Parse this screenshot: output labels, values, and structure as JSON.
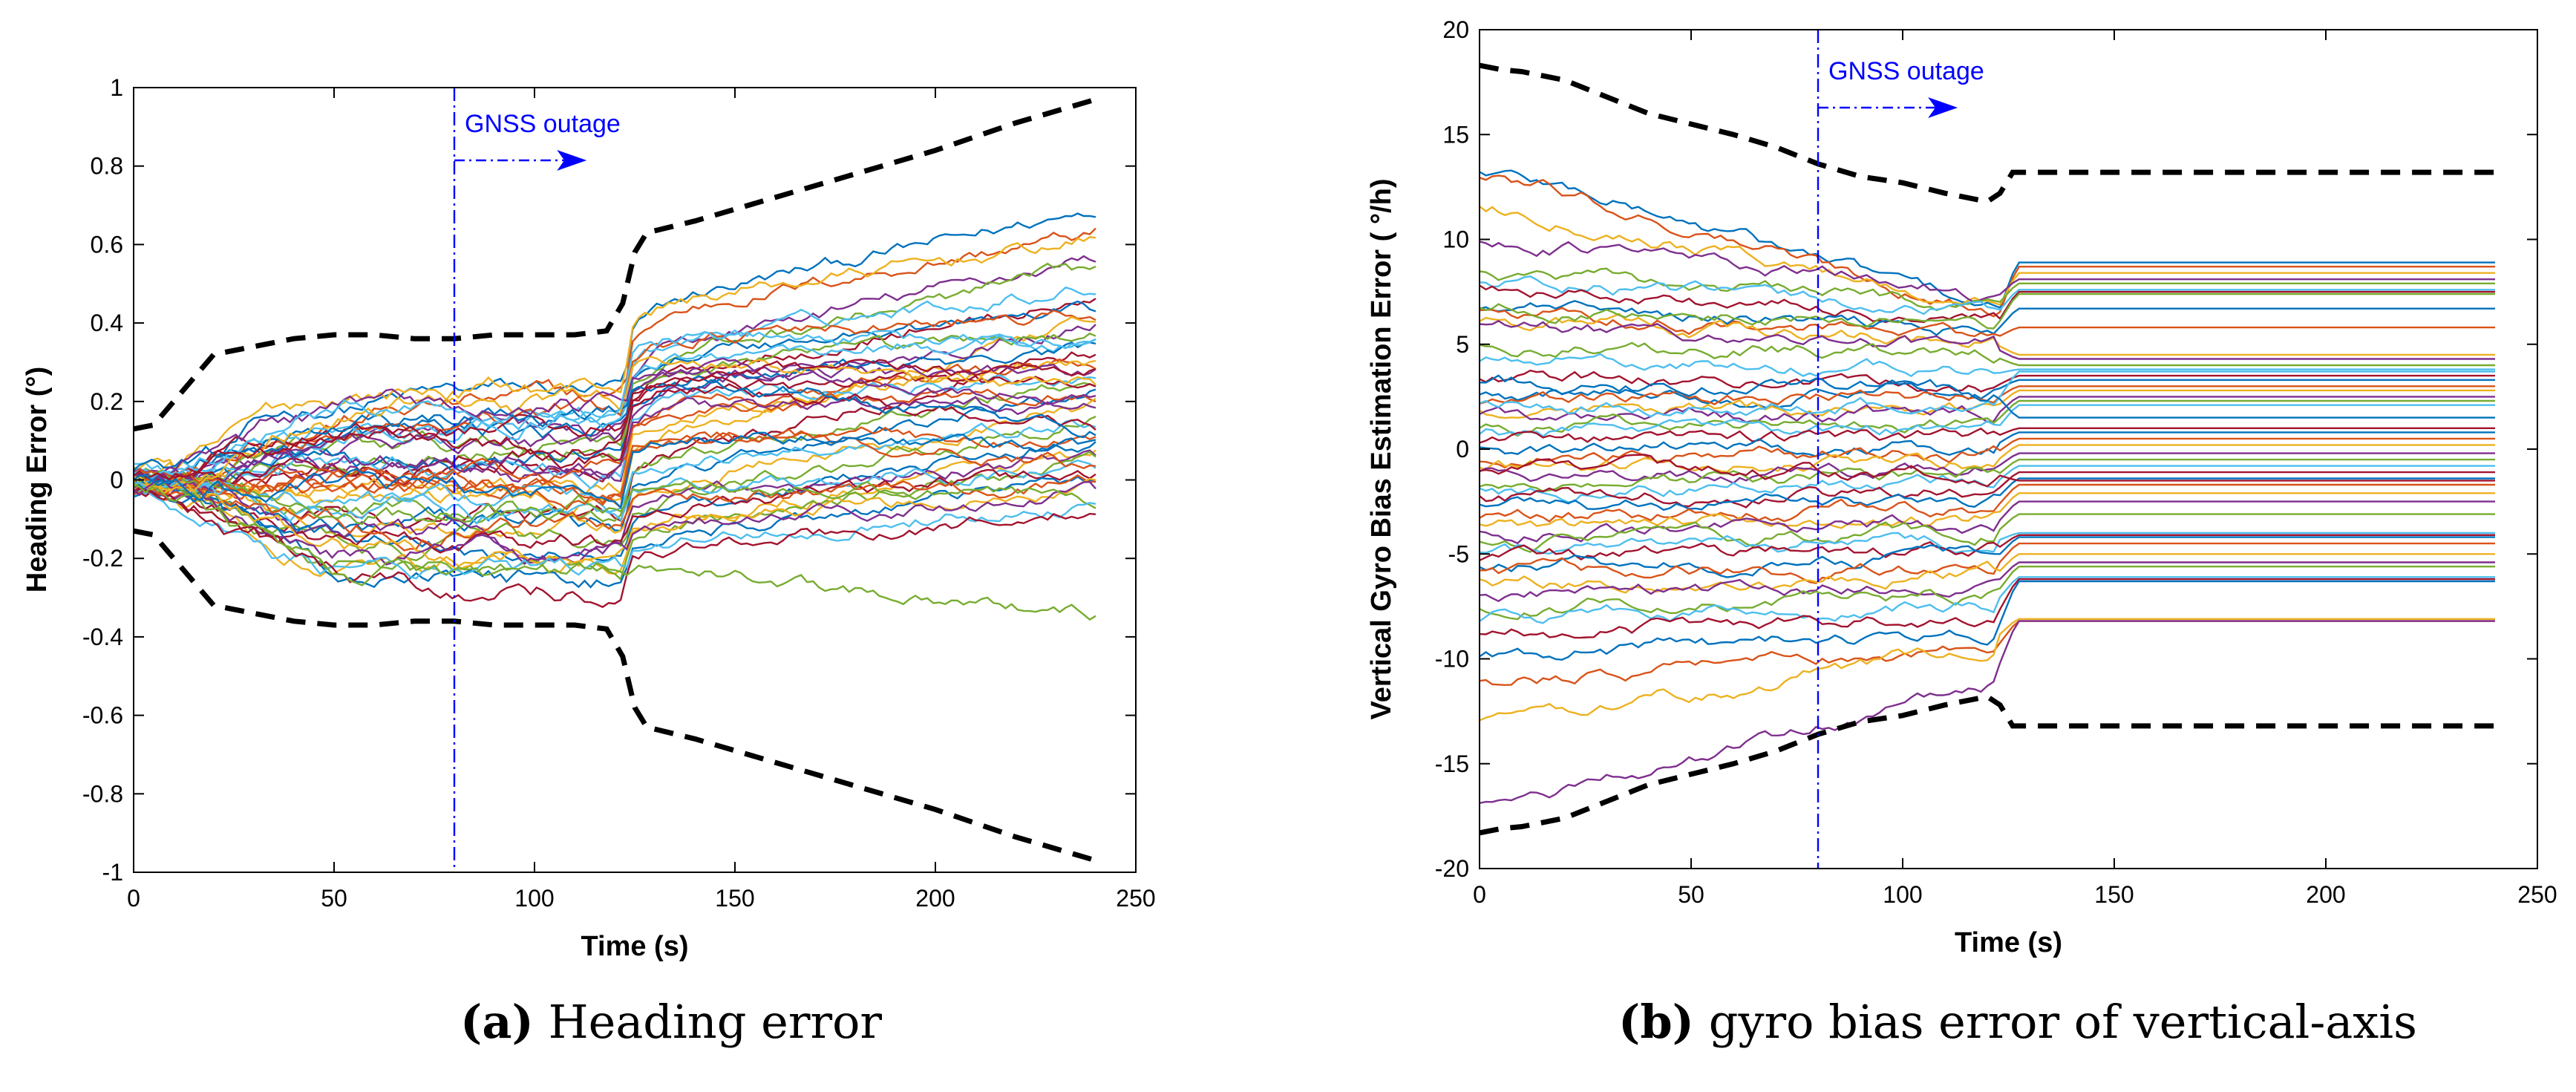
{
  "captions": {
    "a": {
      "letter": "(a)",
      "text": "Heading error"
    },
    "b": {
      "letter": "(b)",
      "text": "gyro bias error of vertical-axis"
    }
  },
  "chart_data": [
    {
      "id": "a",
      "type": "line",
      "title": "",
      "xlabel": "Time (s)",
      "ylabel": "Heading Error (°)",
      "xlim": [
        0,
        250
      ],
      "ylim": [
        -1,
        1
      ],
      "xticks": [
        0,
        50,
        100,
        150,
        200,
        250
      ],
      "yticks": [
        -1,
        -0.8,
        -0.6,
        -0.4,
        -0.2,
        0,
        0.2,
        0.4,
        0.6,
        0.8,
        1
      ],
      "ytick_labels": [
        "-1",
        "-0.8",
        "-0.6",
        "-0.4",
        "-0.2",
        "0",
        "0.2",
        "0.4",
        "0.6",
        "0.8",
        "1"
      ],
      "grid": false,
      "annotation": {
        "text": "GNSS outage",
        "x": 80,
        "arrow_from_x": 80,
        "arrow_to_x": 113
      },
      "outage_line_x": 80,
      "bound_upper": {
        "x": [
          0,
          5,
          10,
          20,
          30,
          40,
          50,
          60,
          70,
          80,
          90,
          100,
          110,
          118,
          122,
          125,
          128,
          140,
          160,
          180,
          200,
          220,
          240
        ],
        "y": [
          0.13,
          0.14,
          0.2,
          0.32,
          0.34,
          0.36,
          0.37,
          0.37,
          0.36,
          0.36,
          0.37,
          0.37,
          0.37,
          0.38,
          0.45,
          0.58,
          0.63,
          0.66,
          0.72,
          0.78,
          0.84,
          0.91,
          0.97
        ]
      },
      "bound_lower": {
        "x": [
          0,
          5,
          10,
          20,
          30,
          40,
          50,
          60,
          70,
          80,
          90,
          100,
          110,
          118,
          122,
          125,
          128,
          140,
          160,
          180,
          200,
          220,
          240
        ],
        "y": [
          -0.13,
          -0.14,
          -0.2,
          -0.32,
          -0.34,
          -0.36,
          -0.37,
          -0.37,
          -0.36,
          -0.36,
          -0.37,
          -0.37,
          -0.37,
          -0.38,
          -0.45,
          -0.58,
          -0.63,
          -0.66,
          -0.72,
          -0.78,
          -0.84,
          -0.91,
          -0.97
        ]
      },
      "series_count": 50,
      "series_x_end": 240,
      "jump_time": 122,
      "series_end_values": [
        0.7,
        0.64,
        0.62,
        0.58,
        0.55,
        0.5,
        0.47,
        0.44,
        0.42,
        0.41,
        0.4,
        0.38,
        0.36,
        0.34,
        0.33,
        0.31,
        0.3,
        0.28,
        0.27,
        0.26,
        0.25,
        0.24,
        0.22,
        0.2,
        0.18,
        0.17,
        0.15,
        0.13,
        0.11,
        0.1,
        0.08,
        0.06,
        0.05,
        0.03,
        0.02,
        0.01,
        -0.01,
        -0.02,
        -0.03,
        -0.05,
        -0.06,
        -0.08,
        0.12,
        0.04,
        0.23,
        0.19,
        -0.35,
        0.35,
        0.29,
        0.09
      ],
      "series_pre_values": [
        0.22,
        0.2,
        0.24,
        0.1,
        0.08,
        0.15,
        0.05,
        0.12,
        0.18,
        -0.05,
        0.02,
        0.09,
        0.14,
        -0.1,
        0.06,
        0.0,
        -0.02,
        0.11,
        -0.08,
        0.03,
        0.07,
        -0.12,
        0.01,
        -0.15,
        0.04,
        -0.18,
        -0.06,
        0.13,
        -0.2,
        -0.03,
        -0.22,
        -0.14,
        -0.24,
        -0.09,
        -0.16,
        -0.26,
        -0.11,
        -0.19,
        -0.21,
        -0.07,
        -0.25,
        -0.27,
        0.16,
        -0.01,
        0.19,
        0.17,
        -0.25,
        0.21,
        0.1,
        -0.04
      ]
    },
    {
      "id": "b",
      "type": "line",
      "title": "",
      "xlabel": "Time (s)",
      "ylabel": "Vertical Gyro Bias Estimation Error ( °/h)",
      "xlim": [
        0,
        250
      ],
      "ylim": [
        -20,
        20
      ],
      "xticks": [
        0,
        50,
        100,
        150,
        200,
        250
      ],
      "yticks": [
        -20,
        -15,
        -10,
        -5,
        0,
        5,
        10,
        15,
        20
      ],
      "ytick_labels": [
        "-20",
        "-15",
        "-10",
        "-5",
        "0",
        "5",
        "10",
        "15",
        "20"
      ],
      "grid": false,
      "annotation": {
        "text": "GNSS outage",
        "x": 80,
        "arrow_from_x": 80,
        "arrow_to_x": 113
      },
      "outage_line_x": 80,
      "bound_upper": {
        "x": [
          0,
          5,
          10,
          20,
          30,
          40,
          50,
          60,
          70,
          80,
          90,
          100,
          110,
          120,
          123,
          126,
          130,
          160,
          200,
          240
        ],
        "y": [
          18.3,
          18.1,
          18.0,
          17.6,
          16.8,
          16.0,
          15.5,
          15.0,
          14.4,
          13.6,
          13.0,
          12.7,
          12.2,
          11.8,
          12.2,
          13.2,
          13.2,
          13.2,
          13.2,
          13.2
        ]
      },
      "bound_lower": {
        "x": [
          0,
          5,
          10,
          20,
          30,
          40,
          50,
          60,
          70,
          80,
          90,
          100,
          110,
          120,
          123,
          126,
          130,
          160,
          200,
          240
        ],
        "y": [
          -18.3,
          -18.1,
          -18.0,
          -17.6,
          -16.8,
          -16.0,
          -15.5,
          -15.0,
          -14.4,
          -13.6,
          -13.0,
          -12.7,
          -12.2,
          -11.8,
          -12.2,
          -13.2,
          -13.2,
          -13.2,
          -13.2,
          -13.2
        ]
      },
      "series_count": 50,
      "series_x_end": 240,
      "jump_time": 122,
      "series_start_values": [
        13.2,
        12.9,
        11.5,
        10.0,
        8.3,
        8.0,
        7.7,
        6.6,
        6.4,
        6.1,
        5.8,
        5.0,
        4.2,
        3.5,
        2.6,
        2.3,
        1.9,
        1.6,
        1.2,
        0.8,
        0.4,
        0.0,
        -0.4,
        -0.8,
        -1.2,
        -1.6,
        -2.0,
        -2.4,
        -2.8,
        -3.2,
        -3.6,
        -4.0,
        -4.4,
        -4.8,
        -5.2,
        -5.6,
        -6.0,
        -6.4,
        -6.8,
        -7.4,
        -8.0,
        -8.8,
        -9.8,
        -11.0,
        -13.1,
        -17.0,
        6.8,
        2.0,
        -1.0,
        3.1
      ],
      "series_pre_end_values": [
        6.2,
        6.0,
        6.5,
        7.2,
        6.8,
        6.4,
        5.9,
        5.6,
        5.3,
        5.0,
        4.8,
        4.4,
        3.6,
        3.0,
        2.8,
        2.4,
        2.0,
        1.6,
        1.3,
        0.9,
        0.6,
        0.2,
        -0.2,
        -0.6,
        -0.9,
        -1.3,
        -1.6,
        -2.0,
        -2.4,
        -2.8,
        -3.2,
        -3.6,
        -4.0,
        -4.4,
        -4.8,
        -5.2,
        -5.6,
        -6.0,
        -6.4,
        -6.9,
        -7.3,
        -8.0,
        -8.8,
        -9.5,
        -9.0,
        -10.7,
        5.8,
        2.2,
        -1.2,
        2.6
      ],
      "series_final_values": [
        8.9,
        8.7,
        8.4,
        8.1,
        7.9,
        7.6,
        7.5,
        6.7,
        5.8,
        4.5,
        4.3,
        4.0,
        3.8,
        3.5,
        3.3,
        3.0,
        2.8,
        2.5,
        2.3,
        2.1,
        1.0,
        0.8,
        0.5,
        0.2,
        -0.2,
        -0.5,
        -0.8,
        -1.1,
        -1.4,
        -1.7,
        -2.1,
        -2.5,
        -3.1,
        -4.0,
        -4.1,
        -4.2,
        -4.5,
        -5.0,
        -5.4,
        -5.6,
        -6.1,
        -6.2,
        -6.3,
        -8.2,
        -8.1,
        -8.2,
        7.4,
        3.7,
        -1.5,
        1.5
      ]
    }
  ]
}
